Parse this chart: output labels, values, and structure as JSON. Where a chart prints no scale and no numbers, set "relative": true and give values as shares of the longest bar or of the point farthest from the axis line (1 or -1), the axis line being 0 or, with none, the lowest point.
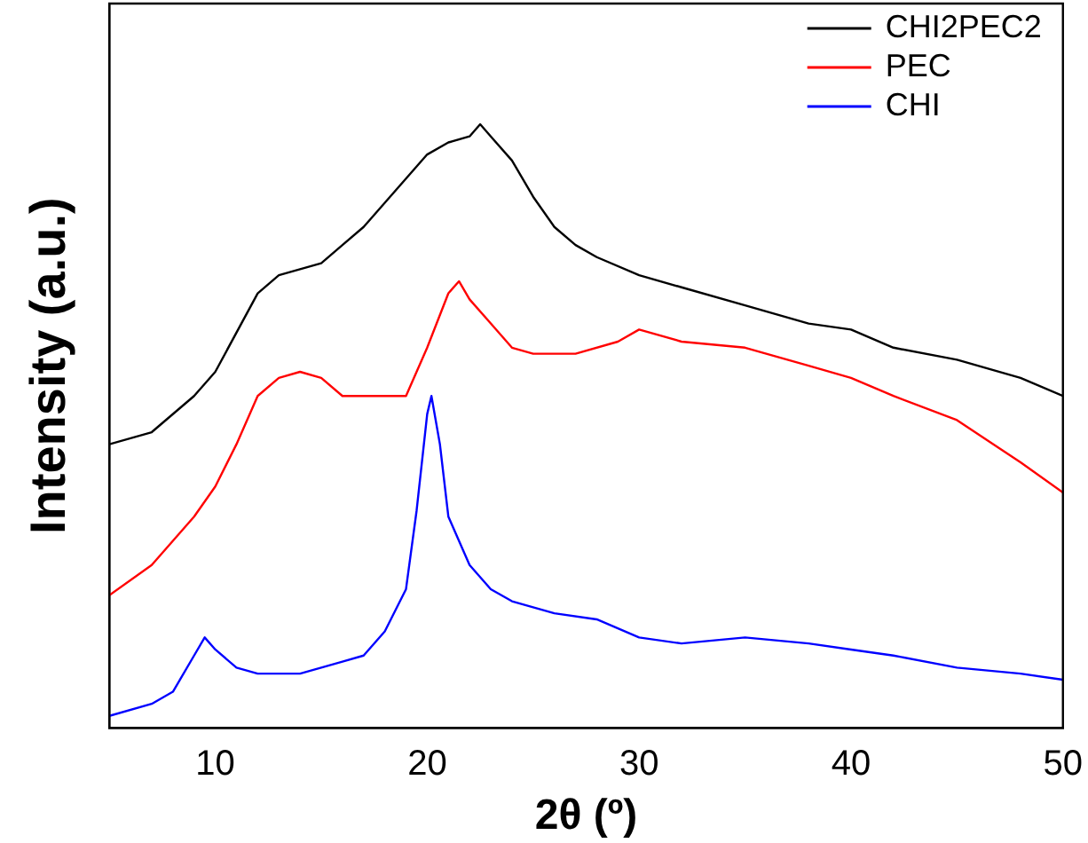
{
  "chart_data": {
    "type": "line",
    "relative": true,
    "xlabel": "2θ (º)",
    "ylabel": "Intensity (a.u.)",
    "xlim": [
      5,
      50
    ],
    "xticks": [
      10,
      20,
      30,
      40,
      50
    ],
    "legend": "top right",
    "grid": false,
    "marker": "none",
    "line_style": "solid",
    "series": [
      {
        "name": "CHI2PEC2",
        "color": "#000000",
        "x": [
          5,
          7,
          9,
          10,
          12,
          13,
          14,
          15,
          16,
          17,
          18,
          19,
          20,
          21,
          22,
          22.5,
          23,
          24,
          25,
          26,
          27,
          28,
          30,
          32,
          35,
          38,
          40,
          42,
          45,
          48,
          50
        ],
        "values": [
          0.47,
          0.49,
          0.55,
          0.59,
          0.72,
          0.75,
          0.76,
          0.77,
          0.8,
          0.83,
          0.87,
          0.91,
          0.95,
          0.97,
          0.98,
          1,
          0.98,
          0.94,
          0.88,
          0.83,
          0.8,
          0.78,
          0.75,
          0.73,
          0.7,
          0.67,
          0.66,
          0.63,
          0.61,
          0.58,
          0.55
        ]
      },
      {
        "name": "PEC",
        "color": "#ff0000",
        "x": [
          5,
          7,
          9,
          10,
          11,
          12,
          13,
          14,
          15,
          16,
          17,
          18,
          19,
          20,
          21,
          21.5,
          22,
          23,
          24,
          25,
          27,
          29,
          30,
          32,
          35,
          38,
          40,
          42,
          45,
          48,
          50
        ],
        "values": [
          0.22,
          0.27,
          0.35,
          0.4,
          0.47,
          0.55,
          0.58,
          0.59,
          0.58,
          0.55,
          0.55,
          0.55,
          0.55,
          0.63,
          0.72,
          0.74,
          0.71,
          0.67,
          0.63,
          0.62,
          0.62,
          0.64,
          0.66,
          0.64,
          0.63,
          0.6,
          0.58,
          0.55,
          0.51,
          0.44,
          0.39
        ]
      },
      {
        "name": "CHI",
        "color": "#0000ff",
        "x": [
          5,
          7,
          8,
          9,
          9.5,
          10,
          11,
          12,
          14,
          16,
          17,
          18,
          19,
          19.5,
          20,
          20.2,
          20.6,
          21,
          22,
          23,
          24,
          26,
          28,
          30,
          32,
          35,
          38,
          40,
          42,
          45,
          48,
          50
        ],
        "values": [
          0.02,
          0.04,
          0.06,
          0.12,
          0.15,
          0.13,
          0.1,
          0.09,
          0.09,
          0.11,
          0.12,
          0.16,
          0.23,
          0.36,
          0.52,
          0.55,
          0.47,
          0.35,
          0.27,
          0.23,
          0.21,
          0.19,
          0.18,
          0.15,
          0.14,
          0.15,
          0.14,
          0.13,
          0.12,
          0.1,
          0.09,
          0.08
        ]
      }
    ]
  }
}
